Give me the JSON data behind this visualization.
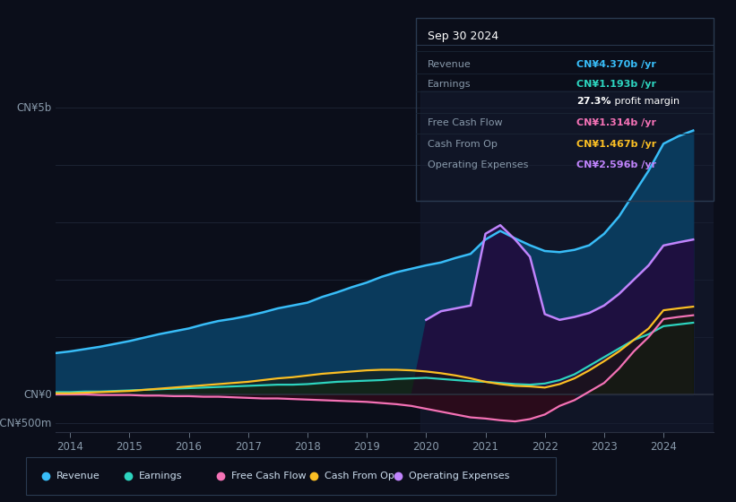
{
  "background_color": "#0b0e1a",
  "plot_bg_color": "#0b0e1a",
  "y_label_top": "CN¥5b",
  "y_label_zero": "CN¥0",
  "y_label_neg": "-CN¥500m",
  "x_ticks": [
    2014,
    2015,
    2016,
    2017,
    2018,
    2019,
    2020,
    2021,
    2022,
    2023,
    2024
  ],
  "tooltip": {
    "title": "Sep 30 2024",
    "rows": [
      {
        "label": "Revenue",
        "value": "CN¥4.370b /yr",
        "color": "#38bdf8"
      },
      {
        "label": "Earnings",
        "value": "CN¥1.193b /yr",
        "color": "#2dd4bf"
      },
      {
        "label": "",
        "value": "27.3% profit margin",
        "color": "#ffffff"
      },
      {
        "label": "Free Cash Flow",
        "value": "CN¥1.314b /yr",
        "color": "#f472b6"
      },
      {
        "label": "Cash From Op",
        "value": "CN¥1.467b /yr",
        "color": "#fbbf24"
      },
      {
        "label": "Operating Expenses",
        "value": "CN¥2.596b /yr",
        "color": "#c084fc"
      }
    ]
  },
  "legend": [
    {
      "label": "Revenue",
      "color": "#38bdf8"
    },
    {
      "label": "Earnings",
      "color": "#2dd4bf"
    },
    {
      "label": "Free Cash Flow",
      "color": "#f472b6"
    },
    {
      "label": "Cash From Op",
      "color": "#fbbf24"
    },
    {
      "label": "Operating Expenses",
      "color": "#c084fc"
    }
  ],
  "years": [
    2013.75,
    2014.0,
    2014.25,
    2014.5,
    2014.75,
    2015.0,
    2015.25,
    2015.5,
    2015.75,
    2016.0,
    2016.25,
    2016.5,
    2016.75,
    2017.0,
    2017.25,
    2017.5,
    2017.75,
    2018.0,
    2018.25,
    2018.5,
    2018.75,
    2019.0,
    2019.25,
    2019.5,
    2019.75,
    2020.0,
    2020.25,
    2020.5,
    2020.75,
    2021.0,
    2021.25,
    2021.5,
    2021.75,
    2022.0,
    2022.25,
    2022.5,
    2022.75,
    2023.0,
    2023.25,
    2023.5,
    2023.75,
    2024.0,
    2024.25,
    2024.5
  ],
  "revenue": [
    0.72,
    0.75,
    0.79,
    0.83,
    0.88,
    0.93,
    0.99,
    1.05,
    1.1,
    1.15,
    1.22,
    1.28,
    1.32,
    1.37,
    1.43,
    1.5,
    1.55,
    1.6,
    1.7,
    1.78,
    1.87,
    1.95,
    2.05,
    2.13,
    2.19,
    2.25,
    2.3,
    2.38,
    2.45,
    2.7,
    2.85,
    2.72,
    2.6,
    2.5,
    2.48,
    2.52,
    2.6,
    2.8,
    3.1,
    3.5,
    3.9,
    4.37,
    4.5,
    4.6
  ],
  "earnings": [
    0.04,
    0.04,
    0.05,
    0.05,
    0.06,
    0.07,
    0.08,
    0.09,
    0.1,
    0.11,
    0.12,
    0.13,
    0.14,
    0.15,
    0.16,
    0.17,
    0.17,
    0.18,
    0.2,
    0.22,
    0.23,
    0.24,
    0.25,
    0.27,
    0.28,
    0.29,
    0.27,
    0.25,
    0.23,
    0.22,
    0.2,
    0.18,
    0.17,
    0.19,
    0.25,
    0.35,
    0.5,
    0.65,
    0.8,
    0.95,
    1.05,
    1.19,
    1.22,
    1.25
  ],
  "free_cash_flow": [
    0.0,
    0.0,
    0.0,
    -0.01,
    -0.01,
    -0.01,
    -0.02,
    -0.02,
    -0.03,
    -0.03,
    -0.04,
    -0.04,
    -0.05,
    -0.06,
    -0.07,
    -0.07,
    -0.08,
    -0.09,
    -0.1,
    -0.11,
    -0.12,
    -0.13,
    -0.15,
    -0.17,
    -0.2,
    -0.25,
    -0.3,
    -0.35,
    -0.4,
    -0.42,
    -0.45,
    -0.47,
    -0.43,
    -0.35,
    -0.2,
    -0.1,
    0.05,
    0.2,
    0.45,
    0.75,
    1.0,
    1.314,
    1.35,
    1.38
  ],
  "cash_from_op": [
    0.02,
    0.02,
    0.03,
    0.04,
    0.05,
    0.06,
    0.08,
    0.1,
    0.12,
    0.14,
    0.16,
    0.18,
    0.2,
    0.22,
    0.25,
    0.28,
    0.3,
    0.33,
    0.36,
    0.38,
    0.4,
    0.42,
    0.43,
    0.43,
    0.42,
    0.4,
    0.37,
    0.33,
    0.28,
    0.22,
    0.18,
    0.15,
    0.14,
    0.12,
    0.18,
    0.28,
    0.42,
    0.58,
    0.75,
    0.95,
    1.15,
    1.467,
    1.5,
    1.53
  ],
  "op_expenses": [
    0.0,
    0.0,
    0.0,
    0.0,
    0.0,
    0.0,
    0.0,
    0.0,
    0.0,
    0.0,
    0.0,
    0.0,
    0.0,
    0.0,
    0.0,
    0.0,
    0.0,
    0.0,
    0.0,
    0.0,
    0.0,
    0.0,
    0.0,
    0.0,
    0.0,
    1.3,
    1.45,
    1.5,
    1.55,
    2.8,
    2.95,
    2.7,
    2.4,
    1.4,
    1.3,
    1.35,
    1.42,
    1.55,
    1.75,
    2.0,
    2.25,
    2.596,
    2.65,
    2.7
  ],
  "ylim": [
    -0.65,
    5.3
  ],
  "xlim": [
    2013.75,
    2024.85
  ],
  "shade_start_x": 2019.9,
  "grid_color": "#1c2333",
  "revenue_color": "#38bdf8",
  "earnings_color": "#2dd4bf",
  "fcf_color": "#f472b6",
  "cashop_color": "#fbbf24",
  "opex_color": "#c084fc",
  "revenue_fill": "#0a3a5c",
  "earnings_fill": "#0a3535",
  "opex_fill": "#1e1040",
  "shade_overlay_color": "#151c30",
  "shade_overlay_alpha": 0.55
}
